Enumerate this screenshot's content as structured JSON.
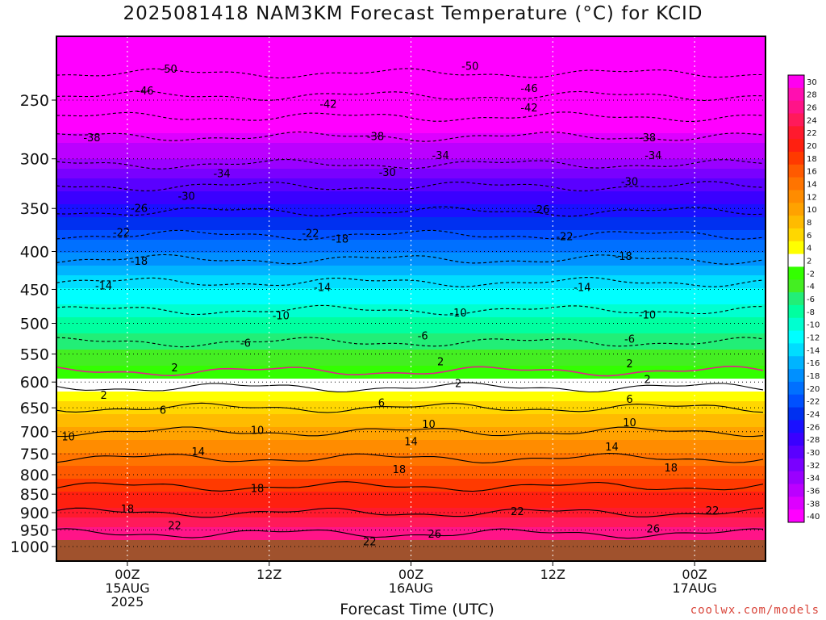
{
  "chart_data": {
    "type": "heatmap",
    "title": "2025081418 NAM3KM Forecast Temperature (°C) for KCID",
    "xlabel": "Forecast Time (UTC)",
    "credit": "coolwx.com/models",
    "y_ticks": [
      250,
      300,
      350,
      400,
      450,
      500,
      550,
      600,
      650,
      700,
      750,
      800,
      850,
      900,
      950,
      1000
    ],
    "y_range": [
      200,
      1015
    ],
    "x_ticks": [
      {
        "hour": 6,
        "lines": [
          "00Z",
          "15AUG",
          "2025"
        ]
      },
      {
        "hour": 18,
        "lines": [
          "12Z"
        ]
      },
      {
        "hour": 30,
        "lines": [
          "00Z",
          "16AUG"
        ]
      },
      {
        "hour": 42,
        "lines": [
          "12Z"
        ]
      },
      {
        "hour": 54,
        "lines": [
          "00Z",
          "17AUG"
        ]
      }
    ],
    "x_range": [
      0,
      60
    ],
    "colorbar": [
      {
        "label": "30",
        "color": "#ff00f0"
      },
      {
        "label": "28",
        "color": "#ff0fb0"
      },
      {
        "label": "26",
        "color": "#ff1488"
      },
      {
        "label": "24",
        "color": "#ff1a5a"
      },
      {
        "label": "22",
        "color": "#ff1a2e"
      },
      {
        "label": "20",
        "color": "#ff2010"
      },
      {
        "label": "18",
        "color": "#ff3a00"
      },
      {
        "label": "16",
        "color": "#ff5a00"
      },
      {
        "label": "14",
        "color": "#ff7400"
      },
      {
        "label": "12",
        "color": "#ff8c00"
      },
      {
        "label": "10",
        "color": "#ffa200"
      },
      {
        "label": "8",
        "color": "#ffbb00"
      },
      {
        "label": "6",
        "color": "#ffd700"
      },
      {
        "label": "4",
        "color": "#ffff00"
      },
      {
        "label": "2",
        "color": "#ffffff"
      },
      {
        "label": "-2",
        "color": "#33ff00"
      },
      {
        "label": "-4",
        "color": "#44ee22"
      },
      {
        "label": "-6",
        "color": "#22ee77"
      },
      {
        "label": "-8",
        "color": "#00ffa0"
      },
      {
        "label": "-10",
        "color": "#00ffd0"
      },
      {
        "label": "-12",
        "color": "#00ffff"
      },
      {
        "label": "-14",
        "color": "#00ddff"
      },
      {
        "label": "-16",
        "color": "#00b4ff"
      },
      {
        "label": "-18",
        "color": "#0090ff"
      },
      {
        "label": "-20",
        "color": "#0070ff"
      },
      {
        "label": "-22",
        "color": "#0050ff"
      },
      {
        "label": "-24",
        "color": "#0030f0"
      },
      {
        "label": "-26",
        "color": "#1a10ff"
      },
      {
        "label": "-28",
        "color": "#3a00ff"
      },
      {
        "label": "-30",
        "color": "#5a00ff"
      },
      {
        "label": "-32",
        "color": "#7a00ff"
      },
      {
        "label": "-34",
        "color": "#9a00ff"
      },
      {
        "label": "-36",
        "color": "#bb00ff"
      },
      {
        "label": "-38",
        "color": "#dd00ff"
      },
      {
        "label": "-40",
        "color": "#ff00ff"
      }
    ],
    "ground_color": "#a0522d",
    "temperature_profile": [
      {
        "p": 200,
        "t": -52
      },
      {
        "p": 230,
        "t": -50
      },
      {
        "p": 255,
        "t": -44
      },
      {
        "p": 280,
        "t": -38
      },
      {
        "p": 300,
        "t": -35
      },
      {
        "p": 320,
        "t": -31
      },
      {
        "p": 340,
        "t": -28
      },
      {
        "p": 360,
        "t": -25
      },
      {
        "p": 380,
        "t": -22
      },
      {
        "p": 410,
        "t": -18
      },
      {
        "p": 440,
        "t": -14
      },
      {
        "p": 480,
        "t": -10
      },
      {
        "p": 530,
        "t": -6
      },
      {
        "p": 580,
        "t": -2
      },
      {
        "p": 610,
        "t": 2
      },
      {
        "p": 650,
        "t": 6
      },
      {
        "p": 700,
        "t": 10
      },
      {
        "p": 760,
        "t": 14
      },
      {
        "p": 830,
        "t": 18
      },
      {
        "p": 900,
        "t": 22
      },
      {
        "p": 960,
        "t": 26
      },
      {
        "p": 1000,
        "t": 28
      }
    ],
    "contour_labels": [
      {
        "text": "-50",
        "x": 9.5,
        "p": 227
      },
      {
        "text": "-50",
        "x": 35,
        "p": 225
      },
      {
        "text": "-46",
        "x": 7.5,
        "p": 243
      },
      {
        "text": "-46",
        "x": 40,
        "p": 241
      },
      {
        "text": "-42",
        "x": 23,
        "p": 253
      },
      {
        "text": "-42",
        "x": 40,
        "p": 256
      },
      {
        "text": "-38",
        "x": 3,
        "p": 281
      },
      {
        "text": "-38",
        "x": 27,
        "p": 280
      },
      {
        "text": "-38",
        "x": 50,
        "p": 281
      },
      {
        "text": "-34",
        "x": 14,
        "p": 314
      },
      {
        "text": "-34",
        "x": 32.5,
        "p": 297
      },
      {
        "text": "-34",
        "x": 50.5,
        "p": 297
      },
      {
        "text": "-30",
        "x": 11,
        "p": 337
      },
      {
        "text": "-30",
        "x": 28,
        "p": 313
      },
      {
        "text": "-30",
        "x": 48.5,
        "p": 322
      },
      {
        "text": "-26",
        "x": 7,
        "p": 350
      },
      {
        "text": "-26",
        "x": 41,
        "p": 351
      },
      {
        "text": "-22",
        "x": 5.5,
        "p": 377
      },
      {
        "text": "-22",
        "x": 21.5,
        "p": 378
      },
      {
        "text": "-22",
        "x": 43,
        "p": 382
      },
      {
        "text": "-18",
        "x": 7,
        "p": 412
      },
      {
        "text": "-18",
        "x": 24,
        "p": 385
      },
      {
        "text": "-18",
        "x": 48,
        "p": 406
      },
      {
        "text": "-14",
        "x": 4,
        "p": 445
      },
      {
        "text": "-14",
        "x": 22.5,
        "p": 447
      },
      {
        "text": "-14",
        "x": 44.5,
        "p": 447
      },
      {
        "text": "-10",
        "x": 19,
        "p": 488
      },
      {
        "text": "-10",
        "x": 34,
        "p": 484
      },
      {
        "text": "-10",
        "x": 50,
        "p": 487
      },
      {
        "text": "-6",
        "x": 16,
        "p": 532
      },
      {
        "text": "-6",
        "x": 31,
        "p": 520
      },
      {
        "text": "-6",
        "x": 48.5,
        "p": 525
      },
      {
        "text": "2",
        "x": 10,
        "p": 574
      },
      {
        "text": "2",
        "x": 32.5,
        "p": 563
      },
      {
        "text": "2",
        "x": 48.5,
        "p": 567
      },
      {
        "text": "2",
        "x": 4,
        "p": 625
      },
      {
        "text": "2",
        "x": 34,
        "p": 603
      },
      {
        "text": "2",
        "x": 50,
        "p": 595
      },
      {
        "text": "6",
        "x": 9,
        "p": 655
      },
      {
        "text": "6",
        "x": 27.5,
        "p": 640
      },
      {
        "text": "6",
        "x": 48.5,
        "p": 633
      },
      {
        "text": "10",
        "x": 1,
        "p": 711
      },
      {
        "text": "10",
        "x": 17,
        "p": 697
      },
      {
        "text": "10",
        "x": 31.5,
        "p": 684
      },
      {
        "text": "10",
        "x": 48.5,
        "p": 681
      },
      {
        "text": "14",
        "x": 12,
        "p": 745
      },
      {
        "text": "14",
        "x": 30,
        "p": 722
      },
      {
        "text": "14",
        "x": 47,
        "p": 734
      },
      {
        "text": "18",
        "x": 17,
        "p": 835
      },
      {
        "text": "18",
        "x": 29,
        "p": 787
      },
      {
        "text": "18",
        "x": 52,
        "p": 783
      },
      {
        "text": "18",
        "x": 6,
        "p": 890
      },
      {
        "text": "22",
        "x": 10,
        "p": 937
      },
      {
        "text": "22",
        "x": 39,
        "p": 897
      },
      {
        "text": "22",
        "x": 55.5,
        "p": 895
      },
      {
        "text": "22",
        "x": 26.5,
        "p": 985
      },
      {
        "text": "26",
        "x": 32,
        "p": 962
      },
      {
        "text": "26",
        "x": 50.5,
        "p": 946
      }
    ]
  }
}
